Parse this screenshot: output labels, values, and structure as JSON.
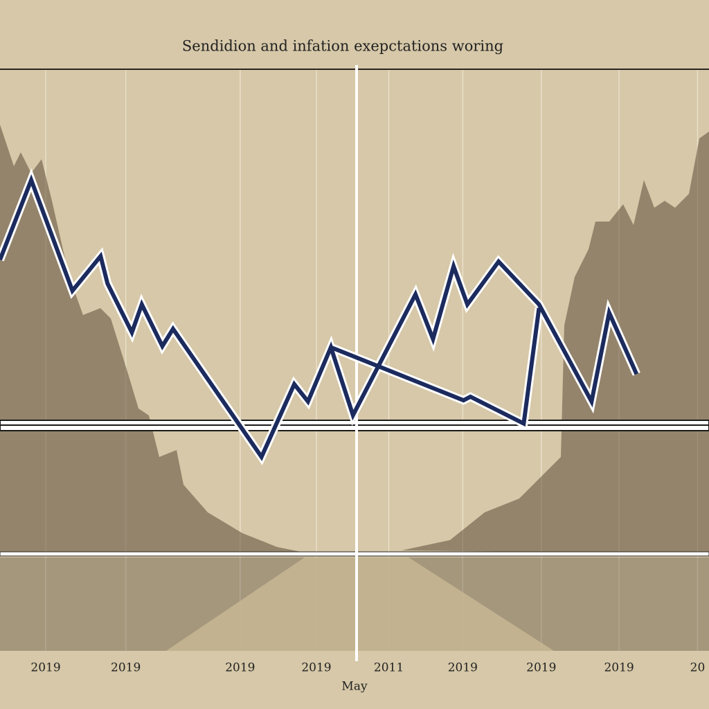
{
  "chart_data": {
    "type": "line",
    "title": "Sendidion and infation exepctations woring",
    "x_label": "May",
    "x": [
      -0.6,
      -0.19,
      0.35,
      0.72,
      0.81,
      1.13,
      1.26,
      1.53,
      1.67,
      2.83,
      3.26,
      3.44,
      3.74,
      4.03,
      4.85,
      5.08,
      5.35,
      5.53,
      5.94,
      6.47,
      7.16,
      7.39,
      7.75,
      null,
      3.74,
      5.48,
      5.57,
      6.27,
      6.47
    ],
    "series": [
      {
        "color": "#1c2b5e",
        "values": [
          68,
          81.4,
          62.8,
          68.6,
          64,
          55.8,
          60.5,
          53.5,
          56.4,
          34.9,
          47.1,
          44.2,
          53.3,
          41.9,
          62.2,
          54.7,
          66.9,
          60.5,
          67.7,
          60.5,
          44.2,
          59.1,
          48.8,
          null,
          53.3,
          44.4,
          45,
          40.5,
          59.9
        ]
      }
    ],
    "xlim": [
      -0.6,
      8.7
    ],
    "ylim": [
      0,
      100
    ],
    "xticks": [
      {
        "value": 0,
        "label": "2019"
      },
      {
        "value": 1.05,
        "label": "2019"
      },
      {
        "value": 2.55,
        "label": "2019"
      },
      {
        "value": 3.55,
        "label": "2019"
      },
      {
        "value": 4.5,
        "label": "2011"
      },
      {
        "value": 5.47,
        "label": "2019"
      },
      {
        "value": 6.5,
        "label": "2019"
      },
      {
        "value": 7.52,
        "label": "2019"
      },
      {
        "value": 8.55,
        "label": "20"
      }
    ],
    "grid": true
  }
}
